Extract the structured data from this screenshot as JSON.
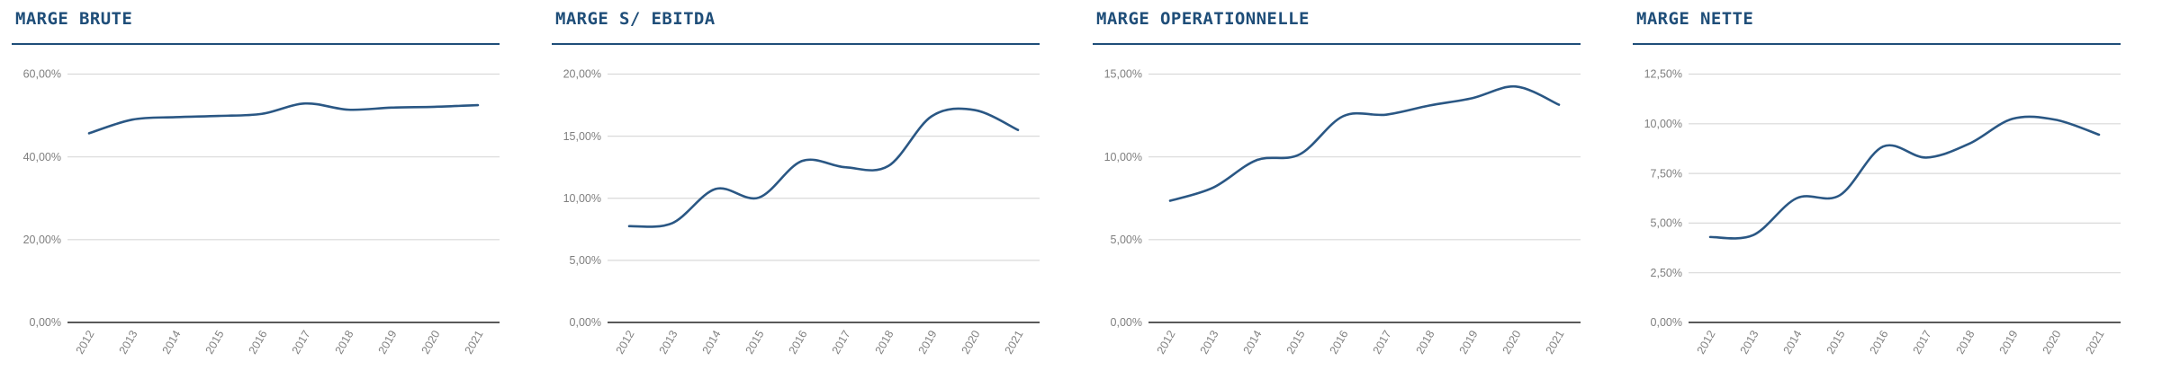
{
  "page": {
    "background": "#ffffff"
  },
  "colors": {
    "title_text": "#1f4e79",
    "title_rule": "#1f4e79",
    "series_line": "#2a5784",
    "gridline": "#d9d9d9",
    "axis_line": "#595959",
    "tick_label": "#7f7f7f"
  },
  "chart_data": [
    {
      "type": "line",
      "title": "MARGE BRUTE",
      "categories": [
        "2012",
        "2013",
        "2014",
        "2015",
        "2016",
        "2017",
        "2018",
        "2019",
        "2020",
        "2021"
      ],
      "values": [
        45.7,
        49.0,
        49.6,
        49.9,
        50.4,
        52.9,
        51.4,
        51.9,
        52.1,
        52.5
      ],
      "ylim": [
        0,
        60
      ],
      "y_tick_step": 20,
      "y_tick_labels": [
        "0,00%",
        "20,00%",
        "40,00%",
        "60,00%"
      ],
      "grid": true,
      "legend": "none",
      "x_label_rotation": -60,
      "unit": "percent"
    },
    {
      "type": "line",
      "title": "MARGE S/ EBITDA",
      "categories": [
        "2012",
        "2013",
        "2014",
        "2015",
        "2016",
        "2017",
        "2018",
        "2019",
        "2020",
        "2021"
      ],
      "values": [
        7.75,
        8.0,
        10.75,
        10.05,
        13.0,
        12.5,
        12.6,
        16.6,
        17.1,
        15.5
      ],
      "ylim": [
        0,
        20
      ],
      "y_tick_step": 5,
      "y_tick_labels": [
        "0,00%",
        "5,00%",
        "10,00%",
        "15,00%",
        "20,00%"
      ],
      "grid": true,
      "legend": "none",
      "x_label_rotation": -60,
      "unit": "percent"
    },
    {
      "type": "line",
      "title": "MARGE OPERATIONNELLE",
      "categories": [
        "2012",
        "2013",
        "2014",
        "2015",
        "2016",
        "2017",
        "2018",
        "2019",
        "2020",
        "2021"
      ],
      "values": [
        7.35,
        8.15,
        9.8,
        10.15,
        12.45,
        12.55,
        13.1,
        13.55,
        14.25,
        13.15
      ],
      "ylim": [
        0,
        15
      ],
      "y_tick_step": 5,
      "y_tick_labels": [
        "0,00%",
        "5,00%",
        "10,00%",
        "15,00%"
      ],
      "grid": true,
      "legend": "none",
      "x_label_rotation": -60,
      "unit": "percent"
    },
    {
      "type": "line",
      "title": "MARGE NETTE",
      "categories": [
        "2012",
        "2013",
        "2014",
        "2015",
        "2016",
        "2017",
        "2018",
        "2019",
        "2020",
        "2021"
      ],
      "values": [
        4.3,
        4.4,
        6.25,
        6.4,
        8.85,
        8.3,
        9.0,
        10.25,
        10.2,
        9.45
      ],
      "ylim": [
        0,
        12.5
      ],
      "y_tick_step": 2.5,
      "y_tick_labels": [
        "0,00%",
        "2,50%",
        "5,00%",
        "7,50%",
        "10,00%",
        "12,50%"
      ],
      "grid": true,
      "legend": "none",
      "x_label_rotation": -60,
      "unit": "percent"
    }
  ]
}
